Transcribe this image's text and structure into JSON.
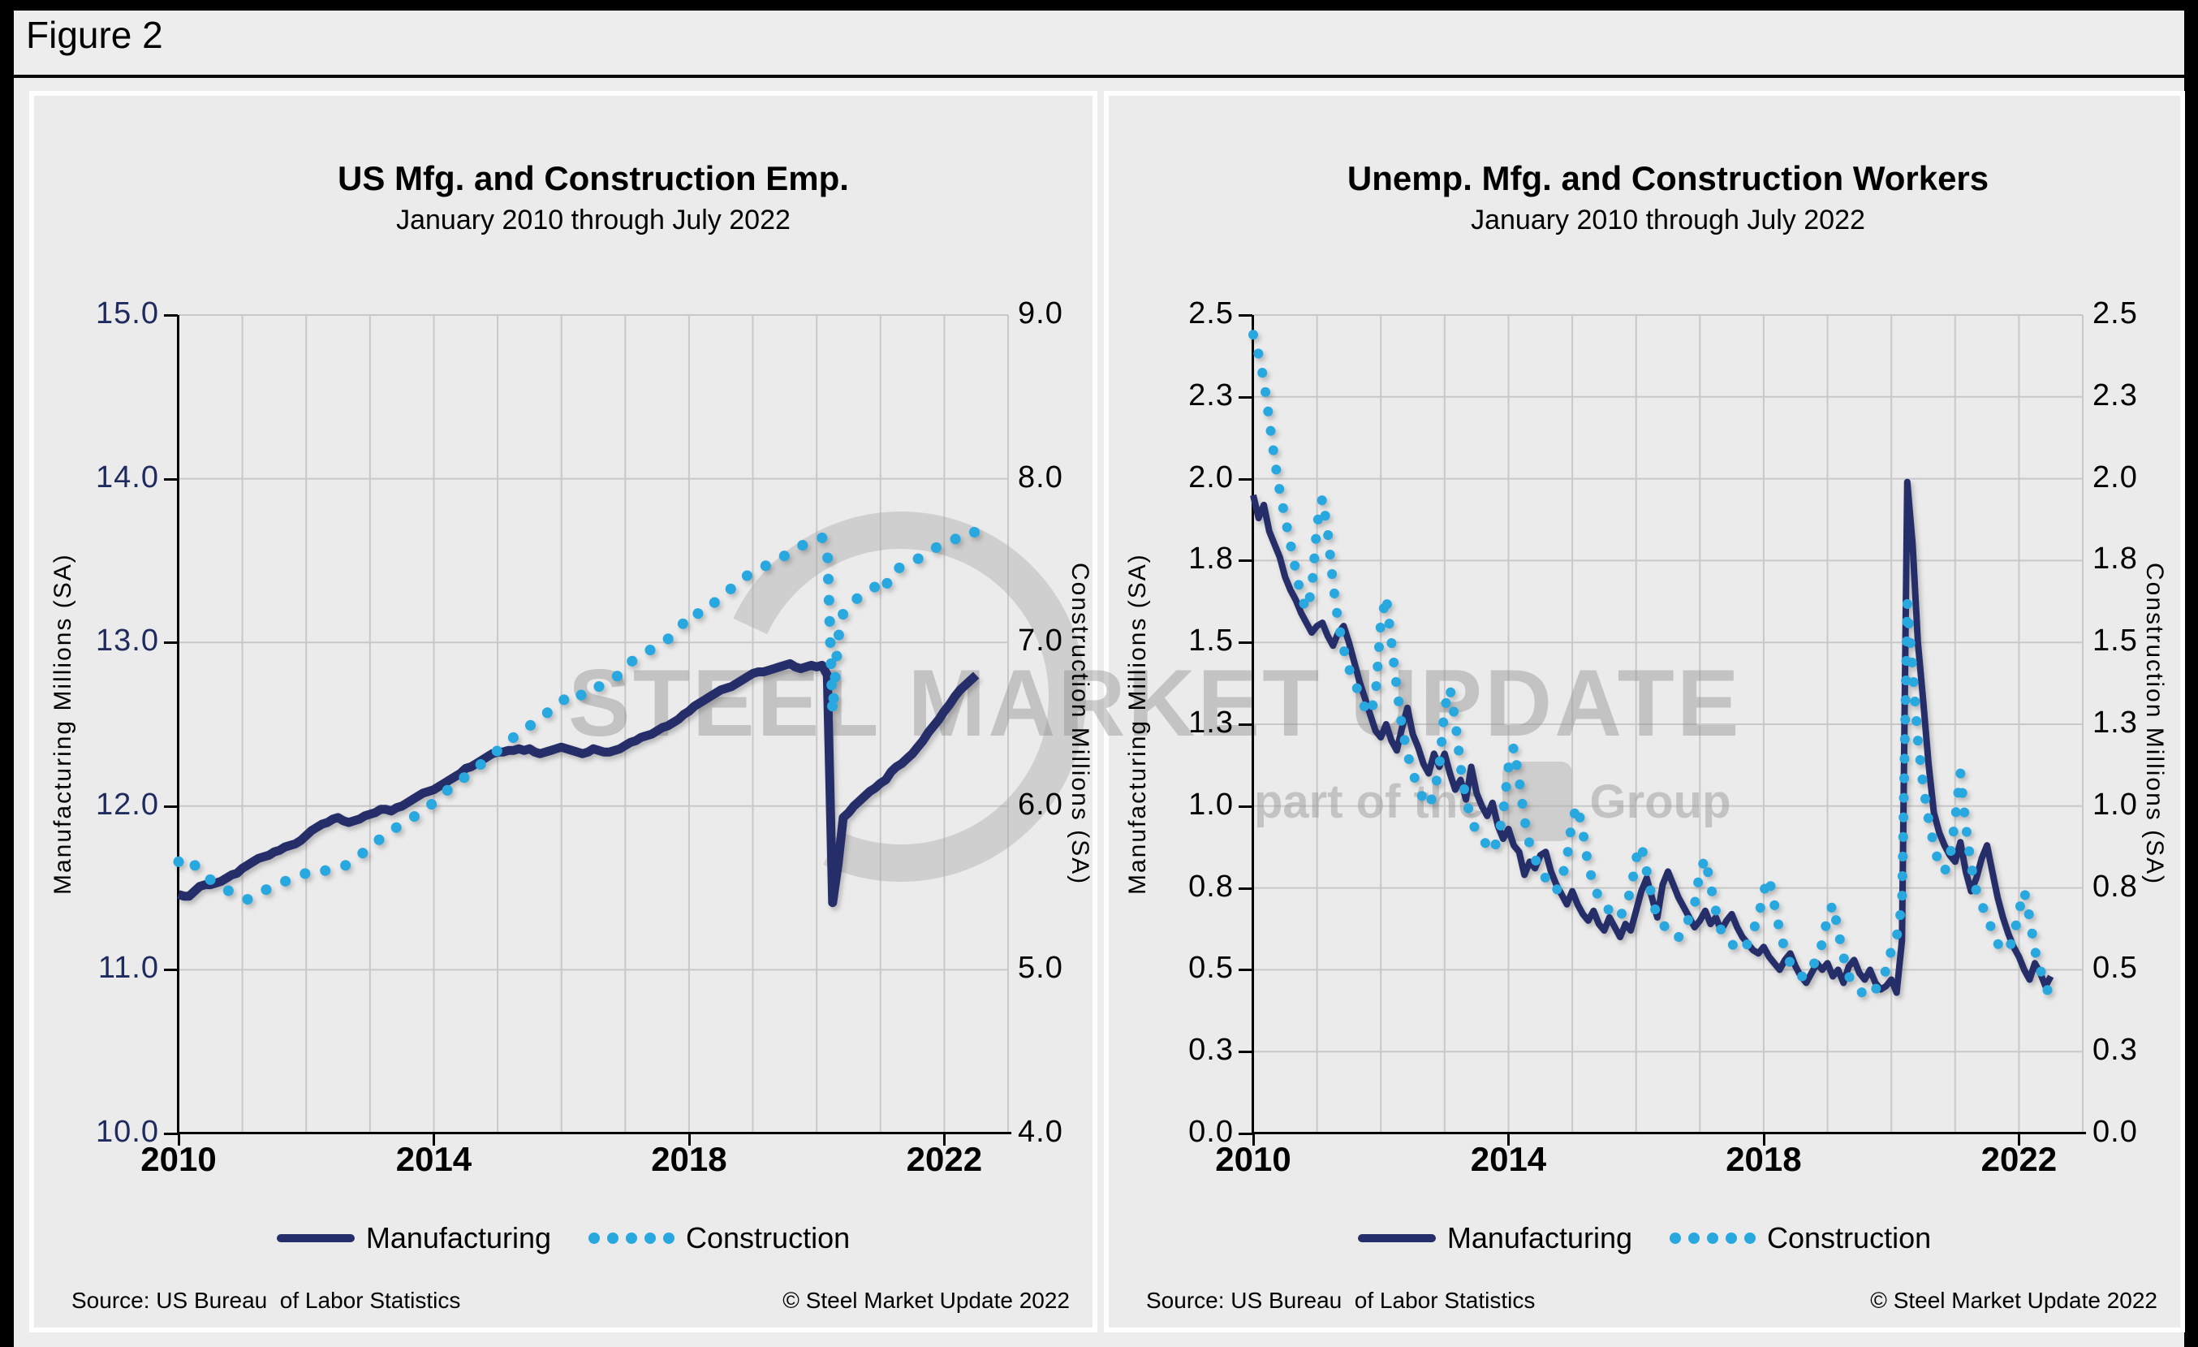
{
  "figure": {
    "label": "Figure 2"
  },
  "watermark": {
    "line1": "STEEL MARKET UPDATE",
    "line2_prefix": "part of the",
    "line2_suffix": "Group",
    "color": "#8c8c8c"
  },
  "colors": {
    "manufacturing": "#252e68",
    "construction": "#29a8e0",
    "left_axis_labels_chart1": "#1f2a5e",
    "grid": "#c8c8c8",
    "panel_background": "#ebebeb",
    "page_background": "#ededed"
  },
  "chart_data": [
    {
      "type": "line",
      "title": "US Mfg. and Construction Emp.",
      "subtitle": "January 2010 through July 2022",
      "source": "Source: US Bureau  of Labor Statistics",
      "copyright": "© Steel Market Update 2022",
      "x": {
        "min": 2010,
        "max": 2023,
        "ticks": [
          "2010",
          "2014",
          "2018",
          "2022"
        ],
        "tick_years": [
          2010,
          2014,
          2018,
          2022
        ]
      },
      "y_left": {
        "title": "Manufacturing Millions (SA)",
        "min": 10,
        "max": 15,
        "ticks": [
          "15.0",
          "14.0",
          "13.0",
          "12.0",
          "11.0",
          "10.0"
        ],
        "color": "#1f2a5e"
      },
      "y_right": {
        "title": "Construction Millions (SA)",
        "min": 4,
        "max": 9,
        "ticks": [
          "9.0",
          "8.0",
          "7.0",
          "6.0",
          "5.0",
          "4.0"
        ],
        "color": "#000000"
      },
      "legend": {
        "items": [
          {
            "label": "Manufacturing",
            "style": "line"
          },
          {
            "label": "Construction",
            "style": "dots"
          }
        ]
      },
      "series": [
        {
          "name": "Manufacturing",
          "axis": "left",
          "style": "line",
          "color": "#252e68",
          "start": 2010,
          "step_months": 1,
          "values": [
            11.46,
            11.45,
            11.45,
            11.48,
            11.51,
            11.52,
            11.52,
            11.53,
            11.54,
            11.56,
            11.58,
            11.59,
            11.62,
            11.64,
            11.66,
            11.68,
            11.69,
            11.7,
            11.72,
            11.73,
            11.75,
            11.76,
            11.77,
            11.79,
            11.82,
            11.85,
            11.87,
            11.89,
            11.9,
            11.92,
            11.93,
            11.91,
            11.9,
            11.91,
            11.92,
            11.94,
            11.95,
            11.96,
            11.98,
            11.98,
            11.97,
            11.99,
            12.0,
            12.02,
            12.04,
            12.06,
            12.08,
            12.09,
            12.1,
            12.12,
            12.14,
            12.16,
            12.18,
            12.2,
            12.23,
            12.24,
            12.26,
            12.28,
            12.3,
            12.32,
            12.33,
            12.33,
            12.34,
            12.34,
            12.35,
            12.34,
            12.35,
            12.33,
            12.32,
            12.33,
            12.34,
            12.35,
            12.36,
            12.35,
            12.34,
            12.33,
            12.32,
            12.33,
            12.35,
            12.34,
            12.33,
            12.33,
            12.34,
            12.35,
            12.37,
            12.39,
            12.4,
            12.42,
            12.43,
            12.44,
            12.46,
            12.48,
            12.49,
            12.51,
            12.53,
            12.56,
            12.58,
            12.61,
            12.63,
            12.65,
            12.67,
            12.69,
            12.71,
            12.72,
            12.73,
            12.75,
            12.77,
            12.79,
            12.81,
            12.82,
            12.82,
            12.83,
            12.84,
            12.85,
            12.86,
            12.87,
            12.85,
            12.84,
            12.85,
            12.86,
            12.85,
            12.86,
            12.8,
            11.41,
            11.64,
            11.93,
            11.96,
            12.0,
            12.03,
            12.06,
            12.09,
            12.11,
            12.14,
            12.16,
            12.21,
            12.24,
            12.26,
            12.29,
            12.32,
            12.36,
            12.4,
            12.45,
            12.49,
            12.53,
            12.58,
            12.62,
            12.67,
            12.71,
            12.74,
            12.77,
            12.8
          ]
        },
        {
          "name": "Construction",
          "axis": "right",
          "style": "dots",
          "color": "#29a8e0",
          "start": 2010,
          "step_months": 1,
          "values": [
            5.66,
            5.63,
            5.61,
            5.64,
            5.6,
            5.57,
            5.55,
            5.53,
            5.51,
            5.49,
            5.47,
            5.45,
            5.44,
            5.43,
            5.45,
            5.47,
            5.48,
            5.5,
            5.51,
            5.52,
            5.54,
            5.55,
            5.56,
            5.58,
            5.59,
            5.6,
            5.61,
            5.6,
            5.61,
            5.62,
            5.63,
            5.63,
            5.65,
            5.67,
            5.7,
            5.72,
            5.75,
            5.78,
            5.8,
            5.82,
            5.85,
            5.87,
            5.89,
            5.91,
            5.93,
            5.95,
            5.97,
            6.0,
            6.02,
            6.05,
            6.08,
            6.11,
            6.13,
            6.16,
            6.18,
            6.21,
            6.23,
            6.26,
            6.28,
            6.31,
            6.34,
            6.36,
            6.39,
            6.42,
            6.44,
            6.46,
            6.49,
            6.51,
            6.53,
            6.56,
            6.59,
            6.62,
            6.64,
            6.66,
            6.69,
            6.7,
            6.67,
            6.69,
            6.71,
            6.73,
            6.74,
            6.76,
            6.78,
            6.81,
            6.84,
            6.88,
            6.9,
            6.92,
            6.94,
            6.96,
            6.98,
            7.0,
            7.02,
            7.05,
            7.08,
            7.12,
            7.15,
            7.19,
            7.17,
            7.19,
            7.22,
            7.25,
            7.28,
            7.31,
            7.33,
            7.36,
            7.38,
            7.41,
            7.43,
            7.45,
            7.46,
            7.48,
            7.49,
            7.51,
            7.53,
            7.55,
            7.57,
            7.59,
            7.6,
            7.62,
            7.63,
            7.64,
            7.57,
            6.57,
            7.02,
            7.18,
            7.22,
            7.25,
            7.28,
            7.3,
            7.32,
            7.34,
            7.38,
            7.34,
            7.43,
            7.45,
            7.46,
            7.48,
            7.49,
            7.51,
            7.53,
            7.55,
            7.57,
            7.59,
            7.6,
            7.62,
            7.63,
            7.65,
            7.66,
            7.68,
            7.67
          ]
        }
      ]
    },
    {
      "type": "line",
      "title": "Unemp. Mfg. and Construction Workers",
      "subtitle": "January 2010 through July 2022",
      "source": "Source: US Bureau  of Labor Statistics",
      "copyright": "© Steel Market Update 2022",
      "x": {
        "min": 2010,
        "max": 2023,
        "ticks": [
          "2010",
          "2014",
          "2018",
          "2022"
        ],
        "tick_years": [
          2010,
          2014,
          2018,
          2022
        ]
      },
      "y_left": {
        "title": "Manufacturing Millions (SA)",
        "min": 0,
        "max": 2.5,
        "ticks": [
          "2.5",
          "2.3",
          "2.0",
          "1.8",
          "1.5",
          "1.3",
          "1.0",
          "0.8",
          "0.5",
          "0.3",
          "0.0"
        ],
        "color": "#000000"
      },
      "y_right": {
        "title": "Construction Millions (SA)",
        "min": 0,
        "max": 2.5,
        "ticks": [
          "2.5",
          "2.3",
          "2.0",
          "1.8",
          "1.5",
          "1.3",
          "1.0",
          "0.8",
          "0.5",
          "0.3",
          "0.0"
        ],
        "color": "#000000"
      },
      "legend": {
        "items": [
          {
            "label": "Manufacturing",
            "style": "line"
          },
          {
            "label": "Construction",
            "style": "dots"
          }
        ]
      },
      "series": [
        {
          "name": "Manufacturing",
          "axis": "left",
          "style": "line",
          "color": "#252e68",
          "start": 2010,
          "step_months": 1,
          "values": [
            1.95,
            1.88,
            1.92,
            1.84,
            1.8,
            1.76,
            1.7,
            1.66,
            1.63,
            1.59,
            1.56,
            1.53,
            1.55,
            1.56,
            1.52,
            1.49,
            1.53,
            1.55,
            1.5,
            1.44,
            1.38,
            1.33,
            1.28,
            1.23,
            1.21,
            1.25,
            1.2,
            1.17,
            1.24,
            1.3,
            1.22,
            1.18,
            1.13,
            1.1,
            1.16,
            1.12,
            1.16,
            1.1,
            1.05,
            1.08,
            1.02,
            1.12,
            1.04,
            1.0,
            0.97,
            1.01,
            0.94,
            0.9,
            0.93,
            0.88,
            0.86,
            0.79,
            0.83,
            0.81,
            0.85,
            0.86,
            0.8,
            0.76,
            0.73,
            0.7,
            0.74,
            0.7,
            0.67,
            0.65,
            0.68,
            0.64,
            0.62,
            0.66,
            0.63,
            0.6,
            0.64,
            0.62,
            0.68,
            0.74,
            0.78,
            0.72,
            0.66,
            0.76,
            0.8,
            0.76,
            0.72,
            0.69,
            0.66,
            0.63,
            0.65,
            0.68,
            0.64,
            0.66,
            0.62,
            0.65,
            0.67,
            0.63,
            0.6,
            0.58,
            0.56,
            0.55,
            0.57,
            0.54,
            0.52,
            0.5,
            0.53,
            0.55,
            0.51,
            0.48,
            0.46,
            0.49,
            0.52,
            0.5,
            0.52,
            0.48,
            0.5,
            0.46,
            0.51,
            0.53,
            0.49,
            0.47,
            0.5,
            0.46,
            0.44,
            0.45,
            0.47,
            0.43,
            0.59,
            1.99,
            1.8,
            1.5,
            1.32,
            1.13,
            0.98,
            0.92,
            0.88,
            0.85,
            0.83,
            0.89,
            0.8,
            0.74,
            0.78,
            0.84,
            0.88,
            0.8,
            0.72,
            0.66,
            0.61,
            0.57,
            0.54,
            0.5,
            0.47,
            0.52,
            0.49,
            0.45,
            0.48
          ]
        },
        {
          "name": "Construction",
          "axis": "right",
          "style": "dots",
          "color": "#29a8e0",
          "start": 2010,
          "step_months": 1,
          "values": [
            2.44,
            2.38,
            2.3,
            2.18,
            2.06,
            1.96,
            1.88,
            1.8,
            1.72,
            1.64,
            1.6,
            1.66,
            1.86,
            1.94,
            1.84,
            1.68,
            1.56,
            1.48,
            1.42,
            1.38,
            1.34,
            1.3,
            1.28,
            1.34,
            1.56,
            1.64,
            1.5,
            1.36,
            1.24,
            1.16,
            1.1,
            1.06,
            1.02,
            1.0,
            1.04,
            1.12,
            1.3,
            1.36,
            1.26,
            1.12,
            1.02,
            0.96,
            0.92,
            0.9,
            0.88,
            0.86,
            0.9,
            0.98,
            1.12,
            1.18,
            1.08,
            0.96,
            0.88,
            0.84,
            0.8,
            0.78,
            0.76,
            0.74,
            0.78,
            0.84,
            0.96,
            1.0,
            0.92,
            0.82,
            0.76,
            0.72,
            0.7,
            0.68,
            0.66,
            0.66,
            0.7,
            0.74,
            0.84,
            0.88,
            0.8,
            0.72,
            0.66,
            0.64,
            0.62,
            0.6,
            0.6,
            0.62,
            0.66,
            0.7,
            0.8,
            0.84,
            0.76,
            0.68,
            0.62,
            0.6,
            0.58,
            0.56,
            0.56,
            0.58,
            0.62,
            0.66,
            0.74,
            0.78,
            0.7,
            0.62,
            0.56,
            0.52,
            0.5,
            0.48,
            0.48,
            0.5,
            0.54,
            0.58,
            0.66,
            0.7,
            0.62,
            0.54,
            0.48,
            0.46,
            0.44,
            0.42,
            0.42,
            0.44,
            0.46,
            0.5,
            0.56,
            0.6,
            0.7,
            1.62,
            1.42,
            1.2,
            1.06,
            0.96,
            0.88,
            0.82,
            0.8,
            0.84,
            0.96,
            1.1,
            0.94,
            0.82,
            0.74,
            0.7,
            0.66,
            0.62,
            0.58,
            0.56,
            0.56,
            0.6,
            0.68,
            0.74,
            0.66,
            0.56,
            0.5,
            0.46,
            0.4
          ]
        }
      ]
    }
  ]
}
